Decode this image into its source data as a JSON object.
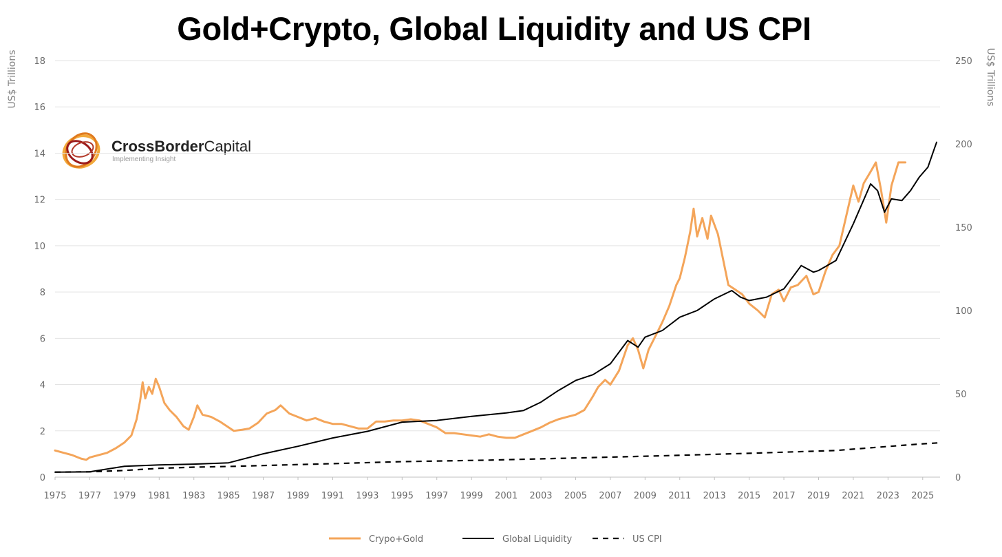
{
  "chart_data": {
    "type": "line",
    "title": "Gold+Crypto, Global Liquidity and US CPI",
    "ylabel": "US$ Trillions",
    "y2label": "US$ Trillions",
    "ylim": [
      0,
      18
    ],
    "y2lim": [
      0,
      250
    ],
    "yticks": [
      0,
      2,
      4,
      6,
      8,
      10,
      12,
      14,
      16,
      18
    ],
    "y2ticks": [
      0,
      50,
      100,
      150,
      200,
      250
    ],
    "xlim": [
      1975,
      2026
    ],
    "xticks": [
      1975,
      1977,
      1979,
      1981,
      1983,
      1985,
      1987,
      1989,
      1991,
      1993,
      1995,
      1997,
      1999,
      2001,
      2003,
      2005,
      2007,
      2009,
      2011,
      2013,
      2015,
      2017,
      2019,
      2021,
      2023,
      2025
    ],
    "grid": "horizontal",
    "legend": "bottom",
    "series": [
      {
        "name": "Crypo+Gold",
        "axis": "left",
        "color": "#f4a55a",
        "style": "solid",
        "points": [
          [
            1975,
            1.15
          ],
          [
            1975.5,
            1.05
          ],
          [
            1976,
            0.95
          ],
          [
            1976.5,
            0.8
          ],
          [
            1976.8,
            0.75
          ],
          [
            1977,
            0.85
          ],
          [
            1977.5,
            0.95
          ],
          [
            1978,
            1.05
          ],
          [
            1978.5,
            1.25
          ],
          [
            1979,
            1.5
          ],
          [
            1979.4,
            1.8
          ],
          [
            1979.7,
            2.5
          ],
          [
            1979.9,
            3.3
          ],
          [
            1980.05,
            4.1
          ],
          [
            1980.2,
            3.4
          ],
          [
            1980.4,
            3.9
          ],
          [
            1980.6,
            3.6
          ],
          [
            1980.8,
            4.25
          ],
          [
            1981,
            3.9
          ],
          [
            1981.3,
            3.2
          ],
          [
            1981.6,
            2.9
          ],
          [
            1982,
            2.6
          ],
          [
            1982.4,
            2.2
          ],
          [
            1982.7,
            2.05
          ],
          [
            1983,
            2.6
          ],
          [
            1983.2,
            3.1
          ],
          [
            1983.5,
            2.7
          ],
          [
            1984,
            2.6
          ],
          [
            1984.5,
            2.4
          ],
          [
            1985,
            2.15
          ],
          [
            1985.3,
            2.0
          ],
          [
            1985.8,
            2.05
          ],
          [
            1986.2,
            2.1
          ],
          [
            1986.7,
            2.35
          ],
          [
            1987.2,
            2.75
          ],
          [
            1987.7,
            2.9
          ],
          [
            1988,
            3.1
          ],
          [
            1988.5,
            2.75
          ],
          [
            1989,
            2.6
          ],
          [
            1989.5,
            2.45
          ],
          [
            1990,
            2.55
          ],
          [
            1990.5,
            2.4
          ],
          [
            1991,
            2.3
          ],
          [
            1991.5,
            2.3
          ],
          [
            1992,
            2.2
          ],
          [
            1992.5,
            2.1
          ],
          [
            1993,
            2.1
          ],
          [
            1993.5,
            2.4
          ],
          [
            1994,
            2.4
          ],
          [
            1994.5,
            2.45
          ],
          [
            1995,
            2.45
          ],
          [
            1995.5,
            2.5
          ],
          [
            1996,
            2.45
          ],
          [
            1996.5,
            2.3
          ],
          [
            1997,
            2.15
          ],
          [
            1997.5,
            1.9
          ],
          [
            1998,
            1.9
          ],
          [
            1998.5,
            1.85
          ],
          [
            1999,
            1.8
          ],
          [
            1999.5,
            1.75
          ],
          [
            2000,
            1.85
          ],
          [
            2000.5,
            1.75
          ],
          [
            2001,
            1.7
          ],
          [
            2001.5,
            1.7
          ],
          [
            2002,
            1.85
          ],
          [
            2002.5,
            2.0
          ],
          [
            2003,
            2.15
          ],
          [
            2003.5,
            2.35
          ],
          [
            2004,
            2.5
          ],
          [
            2004.5,
            2.6
          ],
          [
            2005,
            2.7
          ],
          [
            2005.5,
            2.9
          ],
          [
            2006,
            3.5
          ],
          [
            2006.3,
            3.9
          ],
          [
            2006.7,
            4.2
          ],
          [
            2007,
            4.0
          ],
          [
            2007.5,
            4.6
          ],
          [
            2008,
            5.7
          ],
          [
            2008.3,
            6.0
          ],
          [
            2008.6,
            5.5
          ],
          [
            2008.9,
            4.7
          ],
          [
            2009.2,
            5.5
          ],
          [
            2009.6,
            6.1
          ],
          [
            2010,
            6.7
          ],
          [
            2010.4,
            7.4
          ],
          [
            2010.8,
            8.3
          ],
          [
            2011,
            8.6
          ],
          [
            2011.3,
            9.5
          ],
          [
            2011.6,
            10.6
          ],
          [
            2011.8,
            11.6
          ],
          [
            2012,
            10.4
          ],
          [
            2012.3,
            11.2
          ],
          [
            2012.6,
            10.3
          ],
          [
            2012.8,
            11.3
          ],
          [
            2013.2,
            10.5
          ],
          [
            2013.5,
            9.4
          ],
          [
            2013.8,
            8.3
          ],
          [
            2014.2,
            8.1
          ],
          [
            2014.6,
            7.9
          ],
          [
            2015,
            7.5
          ],
          [
            2015.5,
            7.2
          ],
          [
            2015.9,
            6.9
          ],
          [
            2016.3,
            7.9
          ],
          [
            2016.7,
            8.1
          ],
          [
            2017,
            7.6
          ],
          [
            2017.4,
            8.2
          ],
          [
            2017.8,
            8.3
          ],
          [
            2018.3,
            8.7
          ],
          [
            2018.7,
            7.9
          ],
          [
            2019,
            8.0
          ],
          [
            2019.4,
            8.9
          ],
          [
            2019.8,
            9.6
          ],
          [
            2020.2,
            10.0
          ],
          [
            2020.6,
            11.3
          ],
          [
            2021,
            12.6
          ],
          [
            2021.3,
            11.9
          ],
          [
            2021.6,
            12.7
          ],
          [
            2022,
            13.2
          ],
          [
            2022.3,
            13.6
          ],
          [
            2022.6,
            12.4
          ],
          [
            2022.9,
            11.0
          ],
          [
            2023.2,
            12.6
          ],
          [
            2023.6,
            13.6
          ],
          [
            2024,
            13.6
          ]
        ]
      },
      {
        "name": "Global Liquidity",
        "axis": "right",
        "color": "#000000",
        "style": "solid",
        "points": [
          [
            1975,
            3
          ],
          [
            1977,
            3.2
          ],
          [
            1979,
            6.5
          ],
          [
            1981,
            7.3
          ],
          [
            1983,
            7.8
          ],
          [
            1985,
            8.6
          ],
          [
            1987,
            14
          ],
          [
            1989,
            18.5
          ],
          [
            1991,
            23.5
          ],
          [
            1993,
            27.5
          ],
          [
            1995,
            33
          ],
          [
            1997,
            34
          ],
          [
            1999,
            36.5
          ],
          [
            2001,
            38.5
          ],
          [
            2002,
            40
          ],
          [
            2003,
            45
          ],
          [
            2004,
            52
          ],
          [
            2005,
            58
          ],
          [
            2006,
            61.5
          ],
          [
            2007,
            68
          ],
          [
            2008,
            82
          ],
          [
            2008.6,
            78
          ],
          [
            2009,
            84
          ],
          [
            2010,
            88
          ],
          [
            2011,
            96
          ],
          [
            2012,
            100
          ],
          [
            2013,
            107
          ],
          [
            2014,
            112
          ],
          [
            2014.5,
            108
          ],
          [
            2015,
            106
          ],
          [
            2016,
            108
          ],
          [
            2017,
            113
          ],
          [
            2018,
            127
          ],
          [
            2018.7,
            123
          ],
          [
            2019,
            124
          ],
          [
            2020,
            130
          ],
          [
            2021,
            152
          ],
          [
            2022,
            176
          ],
          [
            2022.4,
            172
          ],
          [
            2022.8,
            159
          ],
          [
            2023.2,
            167
          ],
          [
            2023.8,
            166
          ],
          [
            2024.3,
            172
          ],
          [
            2024.8,
            180
          ],
          [
            2025.3,
            186
          ],
          [
            2025.6,
            195
          ],
          [
            2025.8,
            201
          ]
        ]
      },
      {
        "name": "US CPI",
        "axis": "right",
        "color": "#000000",
        "style": "dashed",
        "points": [
          [
            1975,
            3
          ],
          [
            1977,
            3.2
          ],
          [
            1979,
            4
          ],
          [
            1981,
            5.3
          ],
          [
            1983,
            6
          ],
          [
            1985,
            6.4
          ],
          [
            1990,
            7.8
          ],
          [
            1995,
            9.3
          ],
          [
            2000,
            10.2
          ],
          [
            2005,
            11.5
          ],
          [
            2010,
            12.8
          ],
          [
            2015,
            14.3
          ],
          [
            2020,
            16
          ],
          [
            2022,
            17.6
          ],
          [
            2025,
            20
          ],
          [
            2026,
            20.6
          ]
        ]
      }
    ]
  },
  "logo": {
    "name_bold": "CrossBorder",
    "name_regular": "Capital",
    "tagline": "Implementing Insight"
  }
}
